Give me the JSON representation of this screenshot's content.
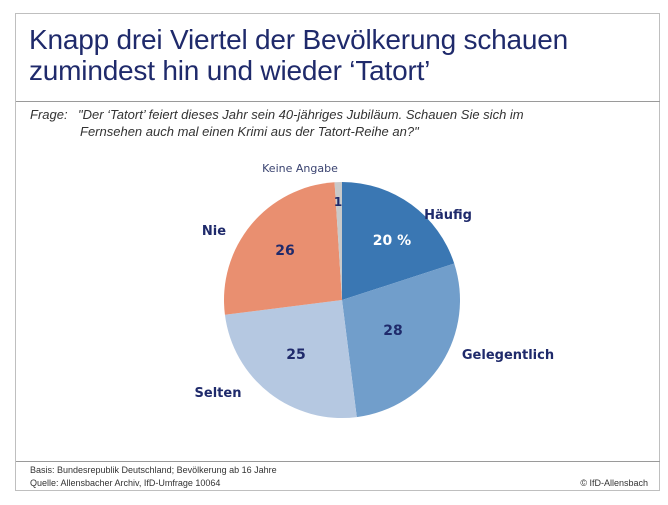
{
  "title_line1": "Knapp drei Viertel der Bevölkerung schauen",
  "title_line2": "zumindest hin und wieder ‘Tatort’",
  "question_label": "Frage:",
  "question_line1": "\"Der ‘Tatort’ feiert dieses Jahr sein 40-jähriges Jubiläum. Schauen Sie sich im",
  "question_line2": "Fernsehen auch mal einen Krimi aus der Tatort-Reihe an?\"",
  "footer": {
    "basis": "Basis: Bundesrepublik Deutschland; Bevölkerung ab 16 Jahre",
    "source": "Quelle: Allensbacher Archiv, IfD-Umfrage 10064",
    "copyright": "© IfD-Allensbach"
  },
  "chart_data": {
    "type": "pie",
    "unit": "%",
    "start": "12 o'clock, clockwise",
    "slices": [
      {
        "label": "Häufig",
        "value": 20,
        "value_label": "20 %",
        "color": "#3a77b3",
        "value_color": "#ffffff"
      },
      {
        "label": "Gelegentlich",
        "value": 28,
        "value_label": "28",
        "color": "#719ecb",
        "value_color": "#1f2a6b"
      },
      {
        "label": "Selten",
        "value": 25,
        "value_label": "25",
        "color": "#b5c8e1",
        "value_color": "#1f2a6b"
      },
      {
        "label": "Nie",
        "value": 26,
        "value_label": "26",
        "color": "#e98f70",
        "value_color": "#1f2a6b"
      },
      {
        "label": "Keine Angabe",
        "value": 1,
        "value_label": "1",
        "color": "#c9c9c9",
        "value_color": "#1f2a6b"
      }
    ]
  }
}
